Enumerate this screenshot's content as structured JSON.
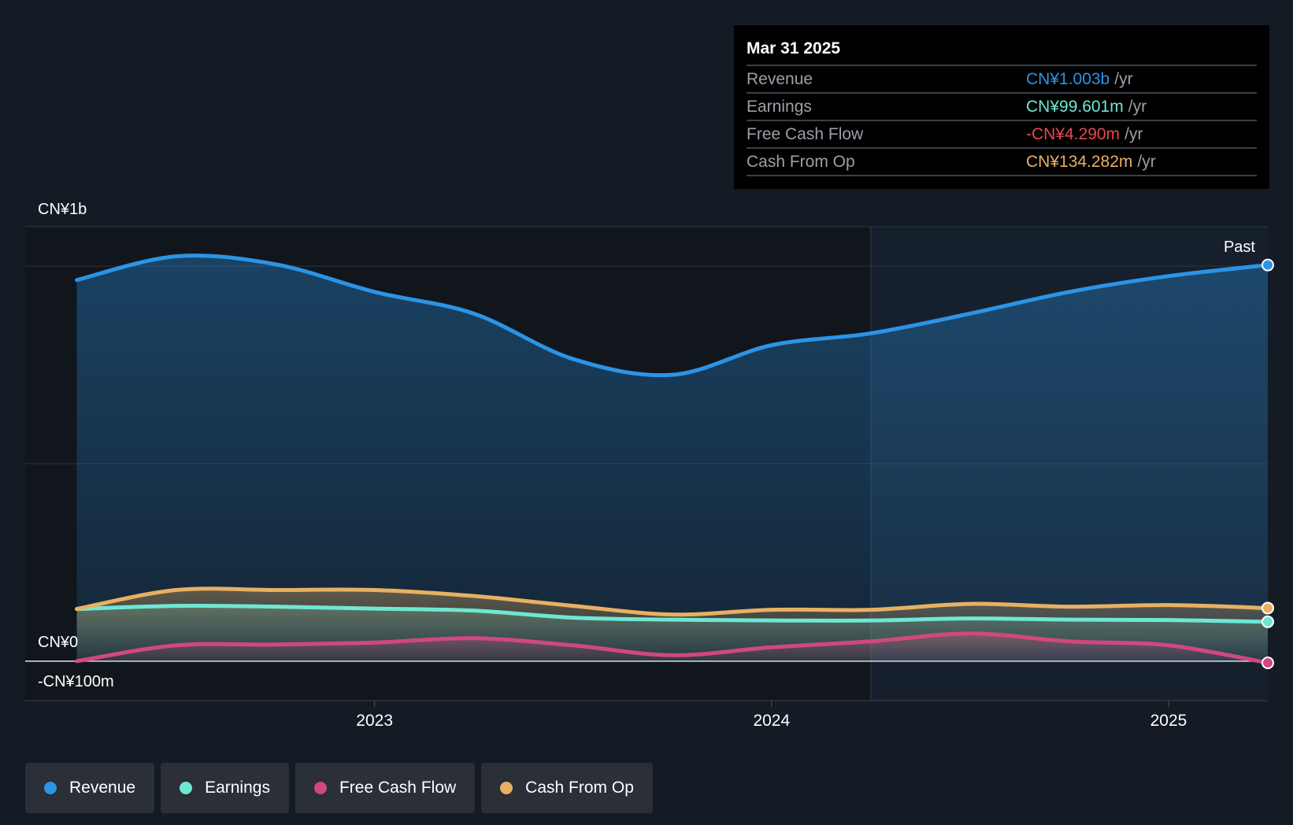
{
  "colors": {
    "background": "#151b24",
    "revenue": "#2b94e6",
    "earnings": "#6ee7d3",
    "free_cash_flow": "#d0487f",
    "cash_from_op": "#e8b062",
    "negative": "#e5484d"
  },
  "tooltip": {
    "date": "Mar 31 2025",
    "rows": [
      {
        "label": "Revenue",
        "value": "CN¥1.003b",
        "unit": "/yr"
      },
      {
        "label": "Earnings",
        "value": "CN¥99.601m",
        "unit": "/yr"
      },
      {
        "label": "Free Cash Flow",
        "value": "-CN¥4.290m",
        "unit": "/yr"
      },
      {
        "label": "Cash From Op",
        "value": "CN¥134.282m",
        "unit": "/yr"
      }
    ]
  },
  "legend": [
    {
      "label": "Revenue",
      "icon": "revenue-dot-icon"
    },
    {
      "label": "Earnings",
      "icon": "earnings-dot-icon"
    },
    {
      "label": "Free Cash Flow",
      "icon": "free-cash-flow-dot-icon"
    },
    {
      "label": "Cash From Op",
      "icon": "cash-from-op-dot-icon"
    }
  ],
  "chart_data": {
    "type": "area",
    "y_tick_labels": [
      "CN¥1b",
      "CN¥0",
      "-CN¥100m"
    ],
    "x_tick_labels": [
      "2023",
      "2024",
      "2025"
    ],
    "past_label": "Past",
    "past_start": 2024.25,
    "ylim": [
      -100,
      1100
    ],
    "xlim": [
      2022.12,
      2025.25
    ],
    "grid": true,
    "series": [
      {
        "name": "Revenue",
        "key": "revenue",
        "x": [
          2022.25,
          2022.5,
          2022.75,
          2023.0,
          2023.25,
          2023.5,
          2023.75,
          2024.0,
          2024.25,
          2024.5,
          2024.75,
          2025.0,
          2025.25
        ],
        "values": [
          965,
          1025,
          1005,
          935,
          880,
          765,
          725,
          800,
          830,
          880,
          935,
          975,
          1003
        ]
      },
      {
        "name": "Earnings",
        "key": "earnings",
        "x": [
          2022.25,
          2022.5,
          2022.75,
          2023.0,
          2023.25,
          2023.5,
          2023.75,
          2024.0,
          2024.25,
          2024.5,
          2024.75,
          2025.0,
          2025.25
        ],
        "values": [
          132,
          140,
          138,
          133,
          128,
          110,
          105,
          103,
          103,
          108,
          105,
          104,
          99.601
        ]
      },
      {
        "name": "Free Cash Flow",
        "key": "free_cash_flow",
        "x": [
          2022.25,
          2022.5,
          2022.75,
          2023.0,
          2023.25,
          2023.5,
          2023.75,
          2024.0,
          2024.25,
          2024.5,
          2024.75,
          2025.0,
          2025.25
        ],
        "values": [
          0,
          40,
          42,
          47,
          58,
          40,
          15,
          35,
          50,
          70,
          50,
          40,
          -4.29
        ]
      },
      {
        "name": "Cash From Op",
        "key": "cash_from_op",
        "x": [
          2022.25,
          2022.5,
          2022.75,
          2023.0,
          2023.25,
          2023.5,
          2023.75,
          2024.0,
          2024.25,
          2024.5,
          2024.75,
          2025.0,
          2025.25
        ],
        "values": [
          132,
          180,
          180,
          180,
          165,
          140,
          118,
          130,
          130,
          145,
          138,
          142,
          134.282
        ]
      }
    ]
  }
}
